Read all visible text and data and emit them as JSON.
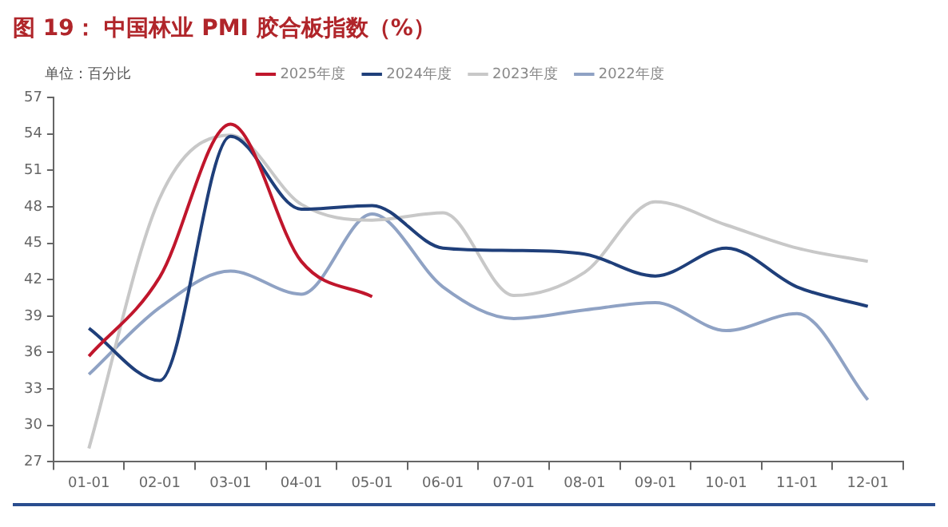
{
  "chart_data": {
    "type": "line",
    "title": "图 19： 中国林业 PMI 胶合板指数（%）",
    "annotations": [
      "单位：百分比"
    ],
    "categories": [
      "01-01",
      "02-01",
      "03-01",
      "04-01",
      "05-01",
      "06-01",
      "07-01",
      "08-01",
      "09-01",
      "10-01",
      "11-01",
      "12-01"
    ],
    "series": [
      {
        "name": "2025年度",
        "color": "#c0162c",
        "values": [
          35.7,
          42.2,
          54.8,
          43.5,
          40.6,
          null,
          null,
          null,
          null,
          null,
          null,
          null
        ]
      },
      {
        "name": "2024年度",
        "color": "#1f3f7a",
        "values": [
          38.0,
          33.7,
          53.8,
          47.8,
          48.1,
          44.6,
          44.4,
          44.1,
          42.3,
          44.6,
          41.4,
          39.8
        ]
      },
      {
        "name": "2023年度",
        "color": "#c8c8c8",
        "values": [
          28.1,
          48.7,
          53.9,
          48.2,
          46.9,
          47.5,
          40.7,
          42.6,
          48.4,
          46.5,
          44.6,
          43.5
        ]
      },
      {
        "name": "2022年度",
        "color": "#8fa2c4",
        "values": [
          34.2,
          39.7,
          42.7,
          40.8,
          47.4,
          41.4,
          38.8,
          39.5,
          40.1,
          37.8,
          39.2,
          32.1
        ]
      }
    ],
    "ylim": [
      27,
      57
    ],
    "yticks": [
      27,
      30,
      33,
      36,
      39,
      42,
      45,
      48,
      51,
      54,
      57
    ],
    "grid": false,
    "legend": "top",
    "marker": "none",
    "line_style": "solid"
  }
}
